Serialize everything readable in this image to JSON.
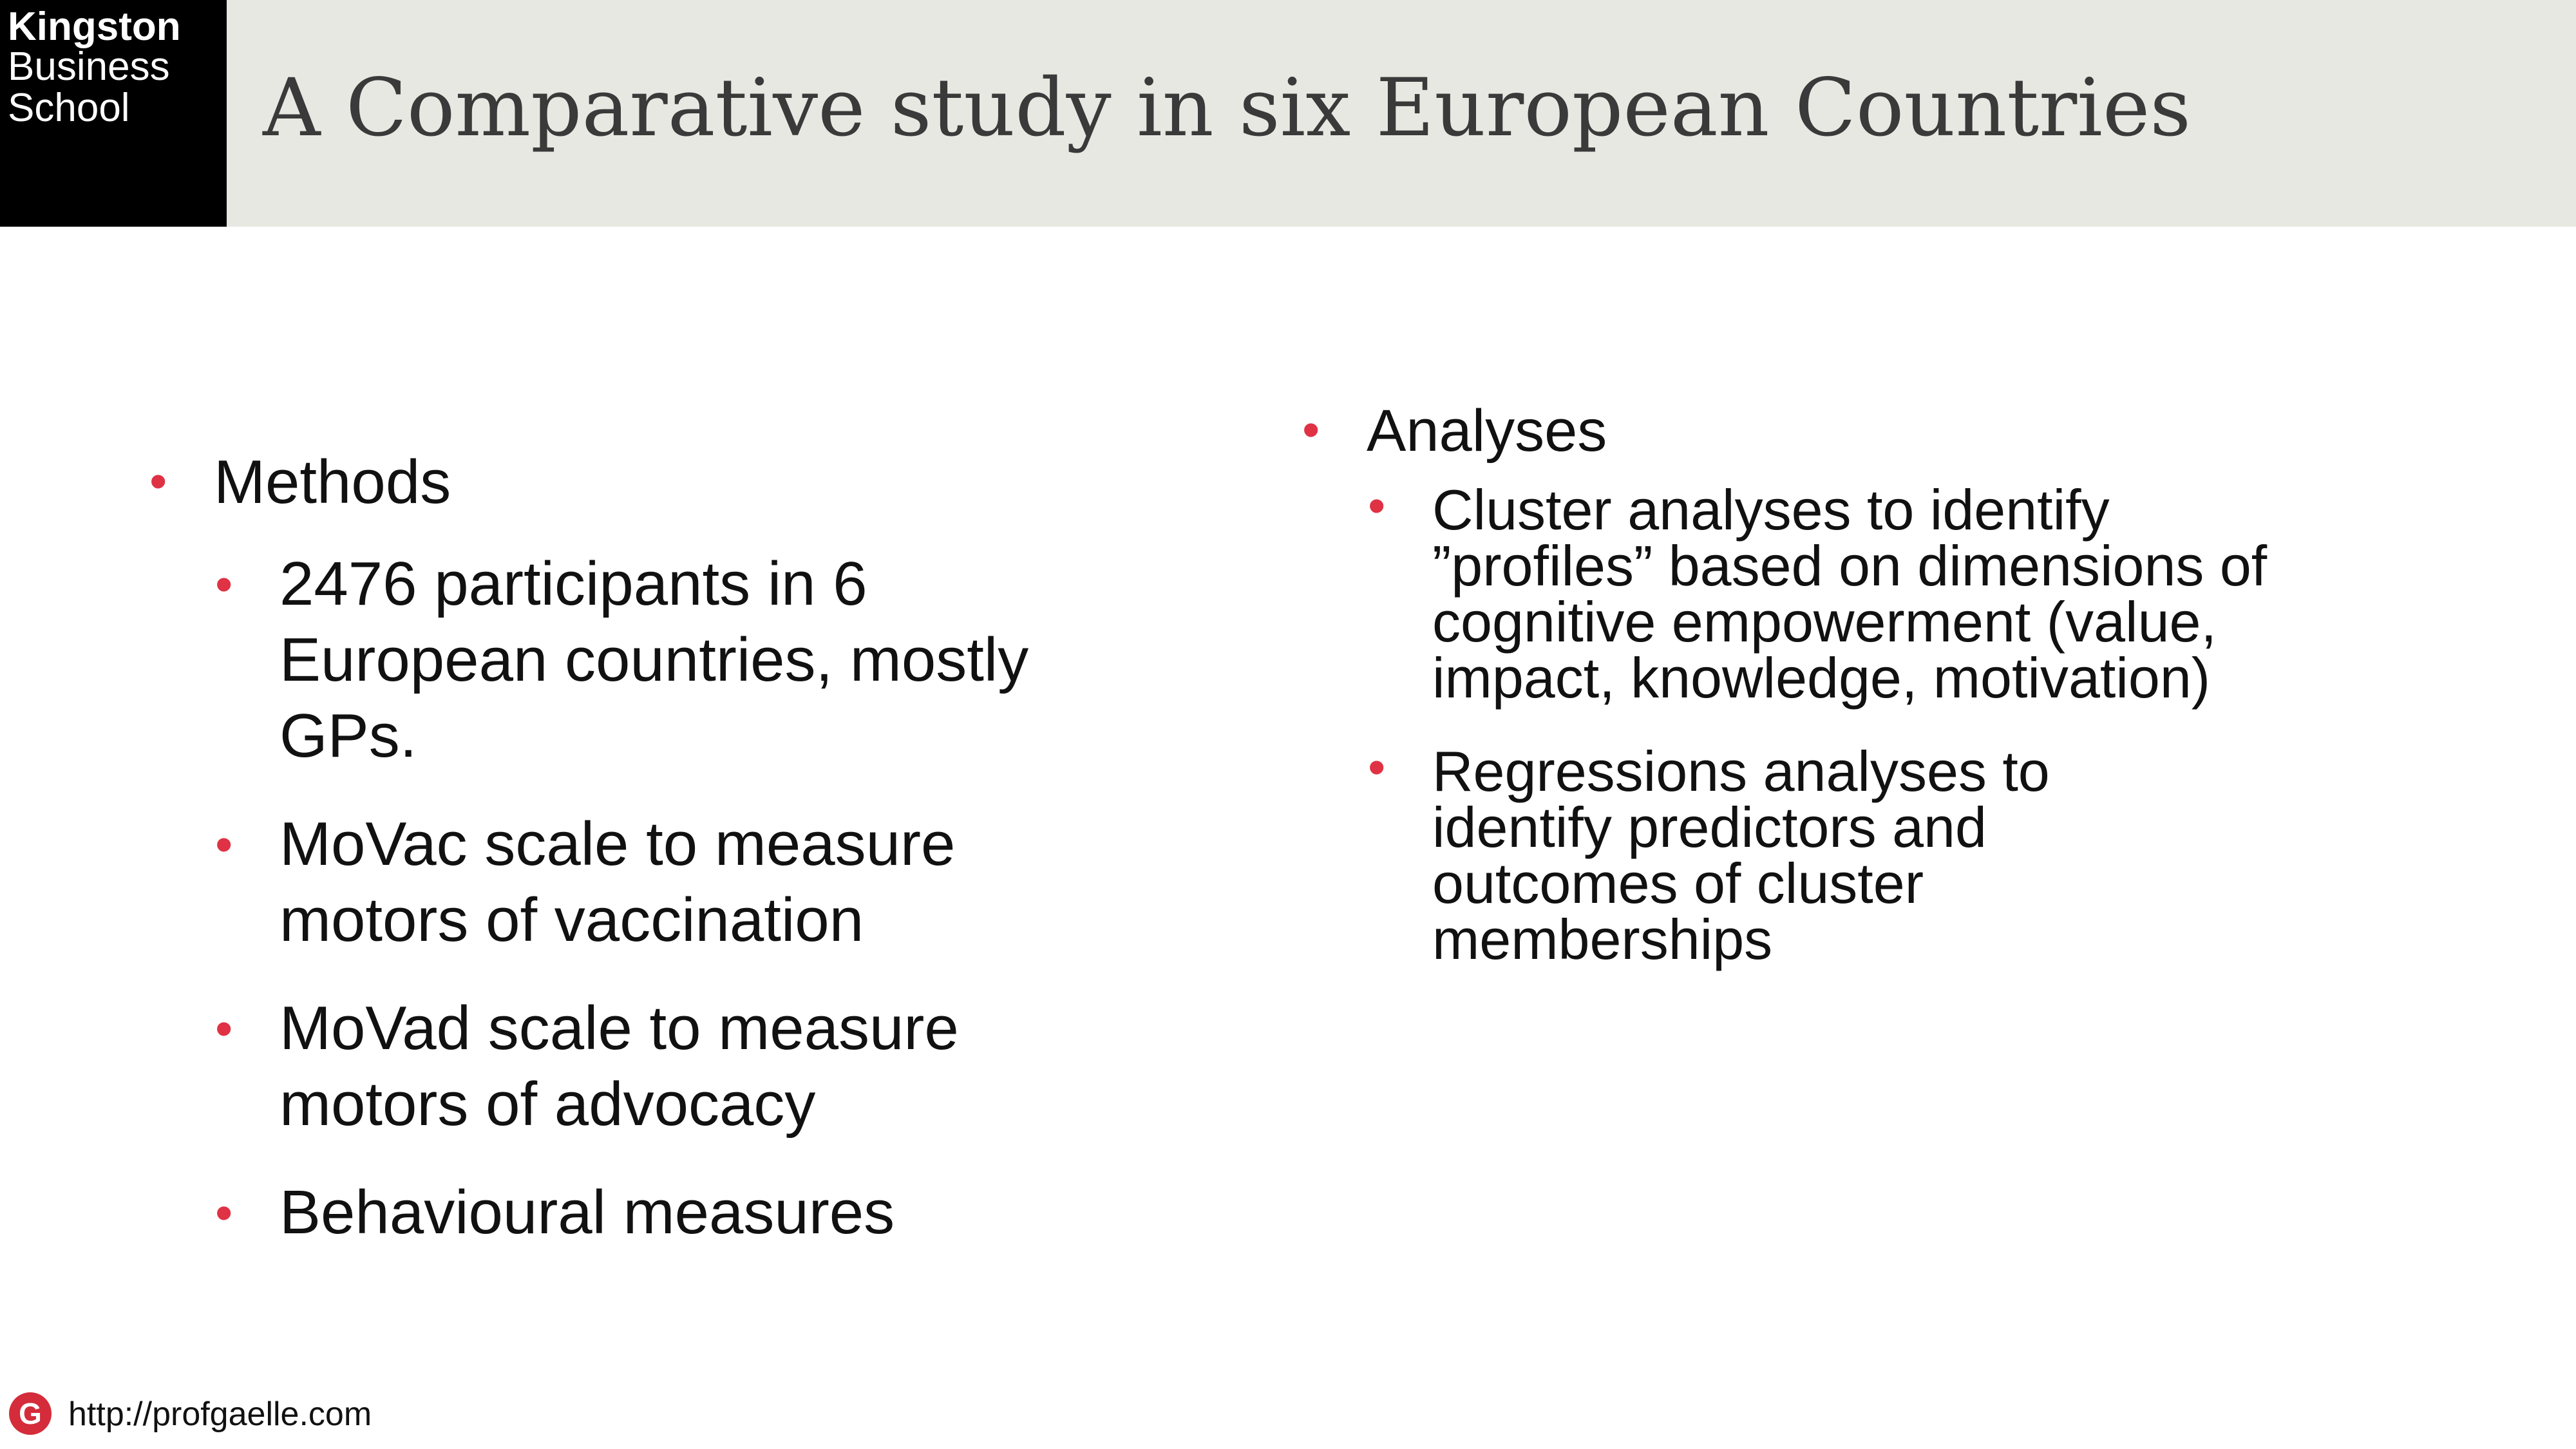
{
  "header": {
    "logo_lines": [
      "Kingston",
      "Business",
      "School"
    ],
    "title": "A Comparative study in six European Countries"
  },
  "left_column": {
    "heading": "Methods",
    "items": [
      "2476 participants in 6 European countries, mostly GPs.",
      "MoVac scale to measure motors of vaccination",
      "MoVad scale to measure motors of advocacy",
      "Behavioural measures"
    ]
  },
  "right_column": {
    "heading": "Analyses",
    "items": [
      "Cluster analyses to identify ”profiles” based on dimensions of cognitive empowerment (value, impact, knowledge, motivation)",
      "Regressions analyses to identify predictors and outcomes of cluster memberships"
    ]
  },
  "footer": {
    "icon_letter": "G",
    "url": "http://profgaelle.com"
  },
  "colors": {
    "header_band": "#e8e8e3",
    "logo_bg": "#000000",
    "bullet": "#e03245",
    "footer_icon": "#d42c3a"
  }
}
